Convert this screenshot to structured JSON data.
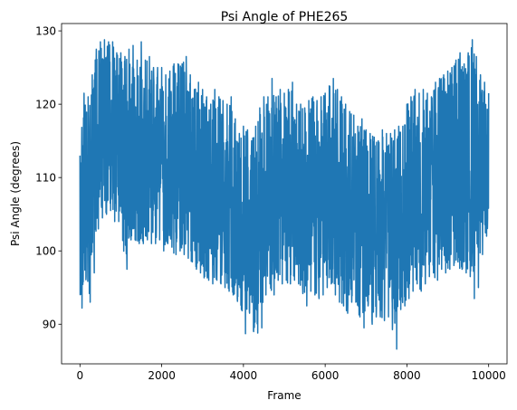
{
  "chart_data": {
    "type": "line",
    "title": "Psi Angle of PHE265",
    "xlabel": "Frame",
    "ylabel": "Psi Angle (degrees)",
    "xlim": [
      -450,
      10450
    ],
    "ylim": [
      84.6,
      131
    ],
    "xticks": [
      0,
      2000,
      4000,
      6000,
      8000,
      10000
    ],
    "xtick_labels": [
      "0",
      "2000",
      "4000",
      "6000",
      "8000",
      "10000"
    ],
    "yticks": [
      90,
      100,
      110,
      120,
      130
    ],
    "ytick_labels": [
      "90",
      "100",
      "110",
      "120",
      "130"
    ],
    "grid": false,
    "line_color": "#1f77b4",
    "series": [
      {
        "x": [
          0,
          100,
          200,
          300,
          400,
          500,
          600,
          700,
          800,
          900,
          1000,
          1100,
          1200,
          1300,
          1400,
          1500,
          1600,
          1700,
          1800,
          1900,
          2000,
          2100,
          2200,
          2300,
          2400,
          2500,
          2600,
          2700,
          2800,
          2900,
          3000,
          3100,
          3200,
          3300,
          3400,
          3500,
          3600,
          3700,
          3800,
          3900,
          4000,
          4100,
          4200,
          4300,
          4400,
          4500,
          4600,
          4700,
          4800,
          4900,
          5000,
          5100,
          5200,
          5300,
          5400,
          5500,
          5600,
          5700,
          5800,
          5900,
          6000,
          6100,
          6200,
          6300,
          6400,
          6500,
          6600,
          6700,
          6800,
          6900,
          7000,
          7100,
          7200,
          7300,
          7400,
          7500,
          7600,
          7700,
          7800,
          7900,
          8000,
          8100,
          8200,
          8300,
          8400,
          8500,
          8600,
          8700,
          8800,
          8900,
          9000,
          9100,
          9200,
          9300,
          9400,
          9500,
          9600,
          9700,
          9800,
          9900,
          10000
        ],
        "mean": [
          105.0,
          107.0,
          110.0,
          113.0,
          115.5,
          117.0,
          117.5,
          117.0,
          116.5,
          116.0,
          115.0,
          114.5,
          114.5,
          114.0,
          113.5,
          113.0,
          113.5,
          114.0,
          113.0,
          112.5,
          112.5,
          112.0,
          111.5,
          112.5,
          112.5,
          112.0,
          111.5,
          110.5,
          109.5,
          109.0,
          109.0,
          108.5,
          108.0,
          108.0,
          107.5,
          107.0,
          106.5,
          106.0,
          105.0,
          104.0,
          103.0,
          102.5,
          102.5,
          103.5,
          104.5,
          105.5,
          106.5,
          107.5,
          108.0,
          108.5,
          108.5,
          108.5,
          108.0,
          107.5,
          107.0,
          107.0,
          106.5,
          106.0,
          106.0,
          106.5,
          107.0,
          107.5,
          108.0,
          108.0,
          107.0,
          106.0,
          105.0,
          104.0,
          103.0,
          102.5,
          102.0,
          101.5,
          101.5,
          101.5,
          101.5,
          101.5,
          102.0,
          102.5,
          103.0,
          103.5,
          104.5,
          106.0,
          107.0,
          107.5,
          108.0,
          108.5,
          109.0,
          109.5,
          110.0,
          110.0,
          110.5,
          111.5,
          112.0,
          112.5,
          112.0,
          111.5,
          112.0,
          112.5,
          112.5,
          112.0,
          111.5
        ],
        "max": [
          113.0,
          121.5,
          121.0,
          124.0,
          127.5,
          128.5,
          128.8,
          128.5,
          128.5,
          127.0,
          127.0,
          126.5,
          127.5,
          128.0,
          126.0,
          128.5,
          126.0,
          126.5,
          125.0,
          125.0,
          125.0,
          124.0,
          124.5,
          125.5,
          125.5,
          125.5,
          126.5,
          124.0,
          122.0,
          123.0,
          122.0,
          121.0,
          120.0,
          122.0,
          121.0,
          120.5,
          120.0,
          121.0,
          118.0,
          116.0,
          117.0,
          116.5,
          115.0,
          117.0,
          119.5,
          121.0,
          121.0,
          123.5,
          121.0,
          122.0,
          121.5,
          122.0,
          123.0,
          120.0,
          120.0,
          119.5,
          120.5,
          121.0,
          120.5,
          121.0,
          121.5,
          122.5,
          123.5,
          122.0,
          121.0,
          120.0,
          119.0,
          118.5,
          117.0,
          118.0,
          116.5,
          116.0,
          115.5,
          115.0,
          116.5,
          116.0,
          116.0,
          116.5,
          117.0,
          117.0,
          120.0,
          121.0,
          122.0,
          121.5,
          122.0,
          121.5,
          121.0,
          123.0,
          123.5,
          124.0,
          124.5,
          125.0,
          126.0,
          127.0,
          125.5,
          127.0,
          128.8,
          126.5,
          124.0,
          123.0,
          121.5
        ],
        "min": [
          92.2,
          96.5,
          93.0,
          97.0,
          103.0,
          104.5,
          105.0,
          105.5,
          104.0,
          104.0,
          103.5,
          97.5,
          101.5,
          101.5,
          101.0,
          101.0,
          101.5,
          101.0,
          101.0,
          101.5,
          100.0,
          101.0,
          100.5,
          99.5,
          100.0,
          99.5,
          99.0,
          98.5,
          97.5,
          97.0,
          96.5,
          96.0,
          95.5,
          96.0,
          95.5,
          95.0,
          94.5,
          94.0,
          93.5,
          92.0,
          88.7,
          91.5,
          89.0,
          88.8,
          89.5,
          94.0,
          95.5,
          94.0,
          96.0,
          95.5,
          96.0,
          95.5,
          96.0,
          95.5,
          95.0,
          92.5,
          94.5,
          94.0,
          93.5,
          94.0,
          95.0,
          95.5,
          94.0,
          93.0,
          92.5,
          91.5,
          93.0,
          93.0,
          91.0,
          89.5,
          92.5,
          90.0,
          91.0,
          91.0,
          90.5,
          91.0,
          91.0,
          86.6,
          92.0,
          92.5,
          93.5,
          94.5,
          95.5,
          94.5,
          95.5,
          96.5,
          97.0,
          96.0,
          97.5,
          97.0,
          97.5,
          98.0,
          98.5,
          97.5,
          97.0,
          96.5,
          93.5,
          95.0,
          99.5,
          102.0,
          102.5
        ]
      }
    ]
  }
}
